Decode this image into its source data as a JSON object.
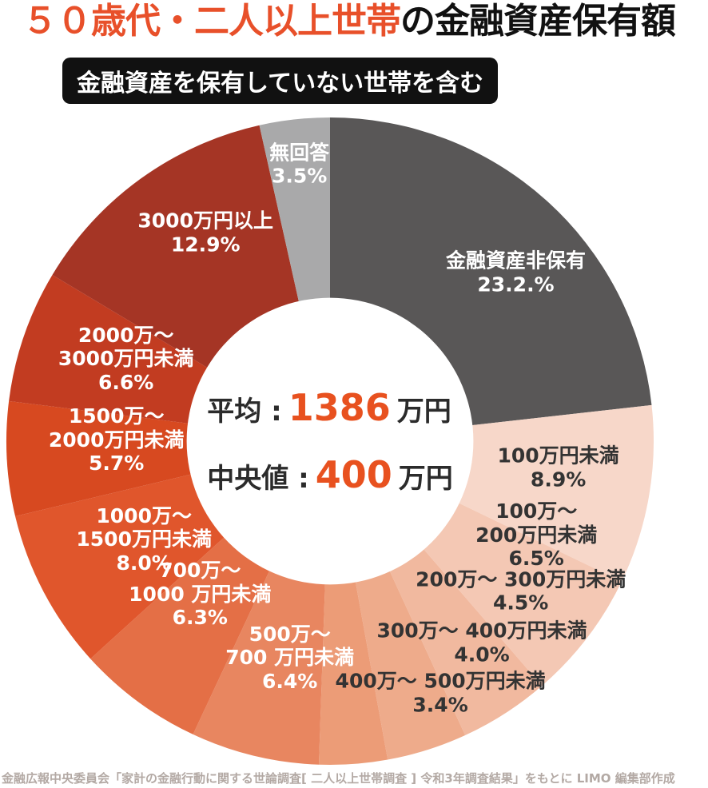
{
  "title": {
    "highlight": "５０歳代・二人以上世帯",
    "rest": "の金融資産保有額"
  },
  "badge": "金融資産を保有していない世帯を含む",
  "center": {
    "average_label": "平均 :",
    "average_value": "1386",
    "average_unit": "万円",
    "median_label": "中央値 :",
    "median_value": "400",
    "median_unit": "万円"
  },
  "source": "金融広報中央委員会「家計の金融行動に関する世論調査[ 二人以上世帯調査 ] 令和3年調査結果」をもとに LIMO 編集部作成",
  "colors": {
    "title_highlight": "#e8502a",
    "title_rest": "#111111",
    "badge_bg": "#111111",
    "badge_text": "#ffffff",
    "value_accent": "#e8511f",
    "source_text": "#b3a9a4",
    "hole_fill": "#ffffff"
  },
  "chart_data": {
    "type": "pie",
    "title": "５０歳代・二人以上世帯の金融資産保有額",
    "subtitle": "金融資産を保有していない世帯を含む",
    "donut_hole_ratio": 0.443,
    "start_angle_deg": 0,
    "direction": "clockwise",
    "center_stats": {
      "average_man_yen": 1386,
      "median_man_yen": 400
    },
    "slices": [
      {
        "label_lines": [
          "金融資産非保有"
        ],
        "pct_label": "23.2.%",
        "value": 23.2,
        "color": "#595757",
        "text_color": "#ffffff"
      },
      {
        "label_lines": [
          "100万円未満"
        ],
        "pct_label": "8.9%",
        "value": 8.9,
        "color": "#f7d7c9",
        "text_color": "#333333"
      },
      {
        "label_lines": [
          "100万〜",
          "200万円未満"
        ],
        "pct_label": "6.5%",
        "value": 6.5,
        "color": "#f4c8b4",
        "text_color": "#333333"
      },
      {
        "label_lines": [
          "200万〜 300万円未満"
        ],
        "pct_label": "4.5%",
        "value": 4.5,
        "color": "#f1b99f",
        "text_color": "#333333"
      },
      {
        "label_lines": [
          "300万〜 400万円未満"
        ],
        "pct_label": "4.0%",
        "value": 4.0,
        "color": "#eeab8b",
        "text_color": "#333333"
      },
      {
        "label_lines": [
          "400万〜 500万円未満"
        ],
        "pct_label": "3.4%",
        "value": 3.4,
        "color": "#ec9c77",
        "text_color": "#333333"
      },
      {
        "label_lines": [
          "500万〜",
          "700 万円未満"
        ],
        "pct_label": "6.4%",
        "value": 6.4,
        "color": "#e88660",
        "text_color": "#ffffff"
      },
      {
        "label_lines": [
          "700万〜",
          "1000 万円未満"
        ],
        "pct_label": "6.3%",
        "value": 6.3,
        "color": "#e46f46",
        "text_color": "#ffffff"
      },
      {
        "label_lines": [
          "1000万〜",
          "1500万円未満"
        ],
        "pct_label": "8.0%",
        "value": 8.0,
        "color": "#e0562c",
        "text_color": "#ffffff"
      },
      {
        "label_lines": [
          "1500万〜",
          "2000万円未満"
        ],
        "pct_label": "5.7%",
        "value": 5.7,
        "color": "#d74920",
        "text_color": "#ffffff"
      },
      {
        "label_lines": [
          "2000万〜",
          "3000万円未満"
        ],
        "pct_label": "6.6%",
        "value": 6.6,
        "color": "#c23c21",
        "text_color": "#ffffff"
      },
      {
        "label_lines": [
          "3000万円以上"
        ],
        "pct_label": "12.9%",
        "value": 12.9,
        "color": "#a53525",
        "text_color": "#ffffff"
      },
      {
        "label_lines": [
          "無回答"
        ],
        "pct_label": "3.5%",
        "value": 3.5,
        "color": "#a9a9aa",
        "text_color": "#ffffff"
      }
    ]
  }
}
